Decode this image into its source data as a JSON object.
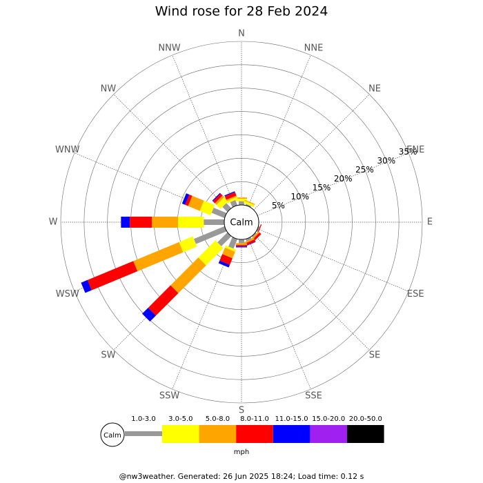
{
  "chart_data": {
    "type": "wind_rose",
    "title": "Wind rose for 28 Feb 2024",
    "calm_label": "Calm",
    "directions": [
      "N",
      "NNE",
      "NE",
      "ENE",
      "E",
      "ESE",
      "SE",
      "SSE",
      "S",
      "SSW",
      "SW",
      "WSW",
      "W",
      "WNW",
      "NW",
      "NNW"
    ],
    "rlim": [
      0,
      35
    ],
    "rticks": [
      {
        "value": 5,
        "label": "5%"
      },
      {
        "value": 10,
        "label": "10%"
      },
      {
        "value": 15,
        "label": "15%"
      },
      {
        "value": 20,
        "label": "20%"
      },
      {
        "value": 25,
        "label": "25%"
      },
      {
        "value": 30,
        "label": "30%"
      },
      {
        "value": 35,
        "label": "35%"
      }
    ],
    "series": [
      {
        "name": "1.0-3.0",
        "color": "#999999",
        "values": [
          0.8,
          0.3,
          0,
          0,
          0,
          0.3,
          0.3,
          0.5,
          0.8,
          2.2,
          3,
          7.1,
          4.4,
          3,
          1.5,
          1.2
        ]
      },
      {
        "name": "3.0-5.0",
        "color": "#ffff00",
        "values": [
          0.5,
          0.5,
          0,
          0,
          0,
          0,
          0,
          0,
          0,
          0.5,
          5.2,
          3.2,
          5.5,
          2.5,
          1.2,
          0.5
        ]
      },
      {
        "name": "5.0-8.0",
        "color": "#ffa500",
        "values": [
          0.3,
          0.2,
          0,
          0,
          0,
          0,
          0.3,
          0.3,
          0.4,
          1.5,
          8.4,
          10.6,
          5.6,
          2.7,
          0.5,
          0.3
        ]
      },
      {
        "name": "8.0-11.0",
        "color": "#ff0000",
        "values": [
          0,
          0,
          0,
          0,
          0,
          0.2,
          0.5,
          0.5,
          0.3,
          1.5,
          6.8,
          10.6,
          4.7,
          0.7,
          0.6,
          0.8
        ]
      },
      {
        "name": "11.0-15.0",
        "color": "#0000ff",
        "values": [
          0,
          0,
          0,
          0,
          0,
          0,
          0,
          0.1,
          0.2,
          0.6,
          1.8,
          1.5,
          1.9,
          0.7,
          0.2,
          0.2
        ]
      },
      {
        "name": "15.0-20.0",
        "color": "#a020f0",
        "values": [
          0,
          0,
          0,
          0,
          0,
          0,
          0,
          0,
          0,
          0,
          0,
          0,
          0,
          0,
          0,
          0
        ]
      },
      {
        "name": "20.0-50.0",
        "color": "#000000",
        "values": [
          0,
          0,
          0,
          0,
          0,
          0,
          0,
          0,
          0,
          0,
          0,
          0,
          0,
          0,
          0,
          0
        ]
      }
    ],
    "unit": "mph",
    "footer": "@nw3weather. Generated: 26 Jun 2025 18:24; Load time: 0.12 s"
  }
}
